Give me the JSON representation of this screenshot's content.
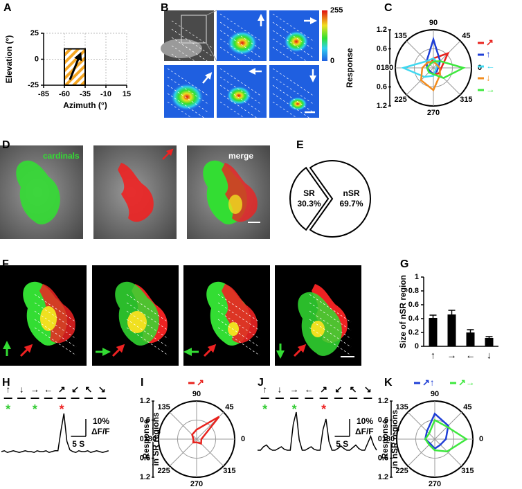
{
  "panels": {
    "labels": [
      "A",
      "B",
      "C",
      "D",
      "E",
      "F",
      "G",
      "H",
      "I",
      "J",
      "K"
    ]
  },
  "images": {
    "colorbar": {
      "lim": [
        0,
        255
      ],
      "ticks": [
        0,
        255
      ]
    },
    "overlay_labels": [
      "cardinals",
      "merge"
    ]
  },
  "chart_data": [
    {
      "type": "region",
      "xlabel": "Azimuth (°)",
      "ylabel": "Elevation (°)",
      "xlim": [
        -85,
        15
      ],
      "ylim": [
        -25,
        25
      ],
      "xticks": [
        -85,
        -60,
        -35,
        -10,
        15
      ],
      "yticks": [
        -25,
        0,
        25
      ],
      "grid": true,
      "box_x": [
        -60,
        -35
      ],
      "box_y": [
        -25,
        10
      ]
    },
    {
      "type": "polar",
      "ylabel": "Response",
      "legend": "right",
      "angles": [
        0,
        45,
        90,
        135,
        180,
        225,
        270,
        315
      ],
      "rlim": [
        0,
        1.2
      ],
      "ylim": [
        -1.2,
        1.2
      ],
      "yticks": [
        1.2,
        0.6,
        {
          "value": 0,
          "label": "0.0"
        },
        {
          "value": -0.6,
          "label": "0.6"
        },
        {
          "value": -1.2,
          "label": "1.2"
        }
      ],
      "series": [
        {
          "name": "↗",
          "color": "#e8231e",
          "values": [
            0.25,
            0.65,
            0.3,
            0.15,
            0.2,
            0.15,
            0.2,
            0.25
          ]
        },
        {
          "name": "↑",
          "color": "#1f3fd6",
          "values": [
            0.15,
            0.3,
            0.9,
            0.3,
            0.2,
            0.15,
            0.2,
            0.15
          ]
        },
        {
          "name": "←",
          "color": "#3fd8f0",
          "values": [
            0.1,
            0.2,
            0.3,
            0.3,
            0.95,
            0.4,
            0.25,
            0.1
          ]
        },
        {
          "name": "↓",
          "color": "#f28c1e",
          "values": [
            0.2,
            0.15,
            0.2,
            0.25,
            0.35,
            0.55,
            0.7,
            0.3
          ]
        },
        {
          "name": "→",
          "color": "#3ee83e",
          "values": [
            0.95,
            0.3,
            0.2,
            0.15,
            0.2,
            0.2,
            0.2,
            0.45
          ]
        }
      ]
    },
    {
      "type": "pie",
      "categories": [
        "SR",
        "nSR"
      ],
      "values": [
        30.3,
        69.7
      ],
      "value_labels": [
        "30.3%",
        "69.7%"
      ]
    },
    {
      "type": "bar",
      "ylabel": "Size of nSR region",
      "categories": [
        "↑",
        "→",
        "←",
        "↓"
      ],
      "values": [
        0.41,
        0.46,
        0.2,
        0.12
      ],
      "errors": [
        0.04,
        0.06,
        0.04,
        0.02
      ],
      "color": "#000000",
      "ylim": [
        0,
        1
      ],
      "yticks": [
        0,
        0.2,
        0.4,
        0.6,
        0.8,
        1
      ]
    },
    {
      "type": "trace",
      "categories": [
        "↑",
        "↓",
        "→",
        "←",
        "↗",
        "↙",
        "↖",
        "↘"
      ],
      "stars": [
        {
          "label": "*",
          "index": 0,
          "color": "#33cc33"
        },
        {
          "label": "*",
          "index": 2,
          "color": "#33cc33"
        },
        {
          "label": "*",
          "index": 4,
          "color": "#ee2222"
        }
      ],
      "x": [
        0,
        1,
        2,
        3,
        4,
        5,
        6,
        7,
        8,
        9,
        10,
        11,
        12,
        13,
        14,
        15,
        16,
        17,
        18,
        19,
        20,
        21,
        22,
        23,
        24,
        25,
        26,
        27,
        28,
        29,
        30,
        31,
        32,
        33,
        34,
        35,
        36
      ],
      "values": [
        0,
        0.5,
        -0.5,
        0,
        0.5,
        0,
        -0.5,
        0,
        0.5,
        0,
        0,
        -0.5,
        0.5,
        0,
        0,
        0.5,
        -0.5,
        0,
        0.5,
        0.5,
        12,
        22,
        6,
        1,
        0,
        -0.5,
        0.5,
        0,
        0,
        0.5,
        -0.5,
        0,
        0.5,
        0,
        -0.5,
        0,
        0.5
      ],
      "scale": {
        "y": 10,
        "y_label": "10%",
        "y_unit": "ΔF/F",
        "x": 5,
        "x_label": "5 S"
      }
    },
    {
      "type": "polar",
      "ylabel": [
        "Response",
        "in SR regions"
      ],
      "legend": "top",
      "angles": [
        0,
        45,
        90,
        135,
        180,
        225,
        270,
        315
      ],
      "rlim": [
        0,
        1.2
      ],
      "ylim": [
        -1.2,
        1.2
      ],
      "yticks": [
        1.2,
        0.6,
        {
          "value": 0,
          "label": "0.0"
        },
        {
          "value": -0.6,
          "label": "0.6"
        },
        {
          "value": -1.2,
          "label": "1.2"
        }
      ],
      "series": [
        {
          "name": "↗",
          "color": "#e8231e",
          "values": [
            0.15,
            1.0,
            0.3,
            0.2,
            0.1,
            0.15,
            0.1,
            0.2
          ]
        }
      ]
    },
    {
      "type": "trace",
      "categories": [
        "↑",
        "↓",
        "→",
        "←",
        "↗",
        "↙",
        "↖",
        "↘"
      ],
      "stars": [
        {
          "label": "*",
          "index": 0,
          "color": "#33cc33"
        },
        {
          "label": "*",
          "index": 2,
          "color": "#33cc33"
        },
        {
          "label": "*",
          "index": 4,
          "color": "#ee2222"
        }
      ],
      "x": [
        0,
        1,
        2,
        3,
        4,
        5,
        6,
        7,
        8,
        9,
        10,
        11,
        12,
        13,
        14,
        15,
        16,
        17,
        18,
        19,
        20,
        21,
        22,
        23,
        24,
        25,
        26,
        27,
        28,
        29,
        30,
        31,
        32,
        33,
        34,
        35,
        36,
        37,
        38,
        39,
        40
      ],
      "values": [
        0,
        0,
        2,
        3,
        1,
        0,
        0,
        1,
        2,
        0.5,
        0,
        0,
        15,
        22,
        6,
        0,
        0,
        1,
        2,
        0.5,
        0,
        0,
        12,
        18,
        5,
        0,
        0,
        1,
        2.5,
        1,
        0,
        0,
        1.5,
        3,
        1,
        0,
        0,
        4,
        8,
        3,
        0
      ],
      "scale": {
        "y": 10,
        "y_label": "10%",
        "y_unit": "ΔF/F",
        "x": 5,
        "x_label": "5 S"
      }
    },
    {
      "type": "polar",
      "ylabel": [
        "Response",
        "in nSR regions"
      ],
      "legend": "top",
      "angles": [
        0,
        45,
        90,
        135,
        180,
        225,
        270,
        315
      ],
      "rlim": [
        0,
        1.2
      ],
      "ylim": [
        -1.2,
        1.2
      ],
      "yticks": [
        1.2,
        0.6,
        {
          "value": 0,
          "label": "0.0"
        },
        {
          "value": -0.6,
          "label": "0.6"
        },
        {
          "value": -1.2,
          "label": "1.2"
        }
      ],
      "series": [
        {
          "name": "↗↑",
          "color": "#1f3fd6",
          "values": [
            0.35,
            0.6,
            0.8,
            0.35,
            0.3,
            0.2,
            0.3,
            0.25
          ]
        },
        {
          "name": "↗→",
          "color": "#3ee83e",
          "values": [
            1.0,
            0.55,
            0.6,
            0.25,
            0.3,
            0.25,
            0.35,
            0.55
          ]
        }
      ]
    }
  ]
}
